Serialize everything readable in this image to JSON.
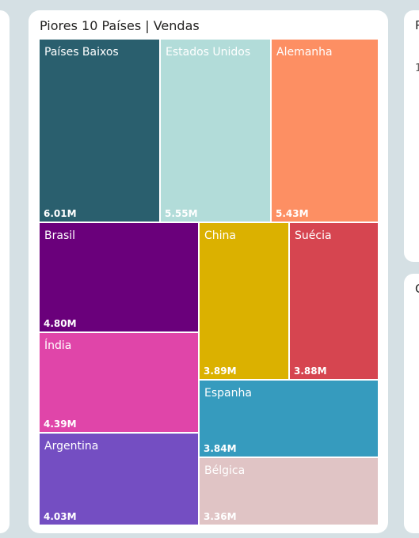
{
  "title": "Piores 10 Países | Vendas",
  "right_panel": {
    "top_initial": "P",
    "top_digit": "1",
    "bottom_initial": "C"
  },
  "chart_data": {
    "type": "treemap",
    "title": "Piores 10 Países | Vendas",
    "unit": "M",
    "items": [
      {
        "name": "Países Baixos",
        "label": "6.01M",
        "value": 6.01,
        "color": "#2a5f6e"
      },
      {
        "name": "Estados Unidos",
        "label": "5.55M",
        "value": 5.55,
        "color": "#b2dcd9"
      },
      {
        "name": "Alemanha",
        "label": "5.43M",
        "value": 5.43,
        "color": "#fd8f63"
      },
      {
        "name": "Brasil",
        "label": "4.80M",
        "value": 4.8,
        "color": "#6a007b"
      },
      {
        "name": "China",
        "label": "3.89M",
        "value": 3.89,
        "color": "#dbb100"
      },
      {
        "name": "Suécia",
        "label": "3.88M",
        "value": 3.88,
        "color": "#d64550"
      },
      {
        "name": "Índia",
        "label": "4.39M",
        "value": 4.39,
        "color": "#e045a9"
      },
      {
        "name": "Espanha",
        "label": "3.84M",
        "value": 3.84,
        "color": "#369bbe"
      },
      {
        "name": "Argentina",
        "label": "4.03M",
        "value": 4.03,
        "color": "#744ec2"
      },
      {
        "name": "Bélgica",
        "label": "3.36M",
        "value": 3.36,
        "color": "#e0c4c5"
      }
    ]
  }
}
